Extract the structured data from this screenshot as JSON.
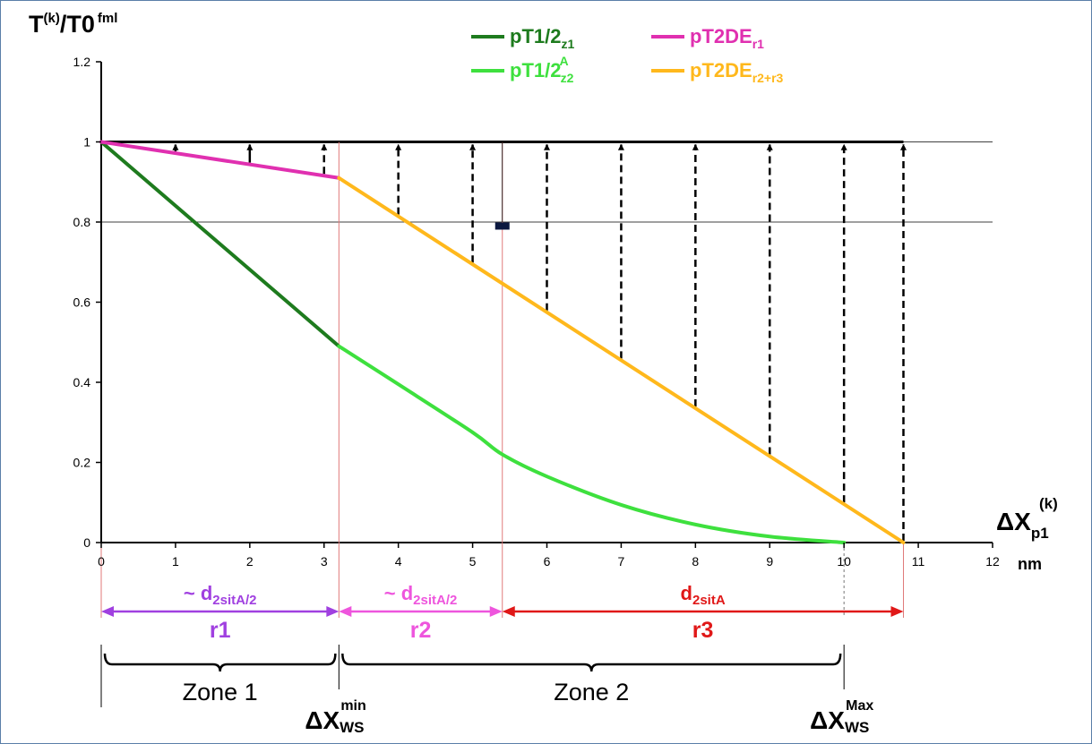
{
  "chart_data": {
    "type": "line",
    "ylabel": {
      "main": "T",
      "sup1": "(k)",
      "mid": "/T0",
      "sup2": "fml"
    },
    "xlabel": {
      "main": "ΔX",
      "sub": "p1",
      "sup": "(k)",
      "unit": "nm"
    },
    "xlim": [
      0,
      12
    ],
    "ylim": [
      0,
      1.2
    ],
    "x_ticks": [
      "0",
      "1",
      "2",
      "3",
      "4",
      "5",
      "6",
      "7",
      "8",
      "9",
      "10",
      "11",
      "12"
    ],
    "y_ticks": [
      "0",
      "0.2",
      "0.4",
      "0.6",
      "0.8",
      "1",
      "1.2"
    ],
    "grid": "horizontal lines at 0.8 and 1",
    "legend": [
      {
        "main": "pT1/2",
        "sub": "z1",
        "sup": "",
        "color": "#1e7b1e"
      },
      {
        "main": "pT2DE",
        "sub": "r1",
        "sup": "",
        "color": "#e030b0"
      },
      {
        "main": "pT1/2",
        "sub": "z2",
        "sup": "A",
        "color": "#3ee03e"
      },
      {
        "main": "pT2DE",
        "sub": "r2+r3",
        "sup": "",
        "color": "#ffb81c"
      }
    ],
    "series": [
      {
        "key": "z1",
        "color": "#1e7b1e",
        "points": [
          [
            0,
            1
          ],
          [
            3.2,
            0.49
          ]
        ]
      },
      {
        "key": "z2",
        "color": "#3ee03e",
        "points": [
          [
            3.2,
            0.49
          ],
          [
            4,
            0.395
          ],
          [
            5,
            0.275
          ],
          [
            5.4,
            0.22
          ],
          [
            6,
            0.165
          ],
          [
            7,
            0.094
          ],
          [
            8,
            0.045
          ],
          [
            9,
            0.015
          ],
          [
            10,
            0
          ]
        ]
      },
      {
        "key": "r1",
        "color": "#e030b0",
        "points": [
          [
            0,
            1
          ],
          [
            3.2,
            0.91
          ]
        ]
      },
      {
        "key": "r2r3",
        "color": "#ffb81c",
        "points": [
          [
            3.2,
            0.91
          ],
          [
            10.8,
            0
          ]
        ]
      }
    ],
    "arrows_x": [
      1,
      2,
      3,
      4,
      5,
      6,
      7,
      8,
      9,
      10,
      10.8
    ],
    "arrows_to_y": 1,
    "vertical_markers_x": [
      3.2,
      5.4
    ],
    "small_marker": {
      "x": 5.4,
      "y": 0.79
    },
    "regions": [
      {
        "label_main": "~ d",
        "label_sub": "2sitA/2",
        "name": "r1",
        "from": 0,
        "to": 3.2,
        "color": "#a040e0"
      },
      {
        "label_main": "~ d",
        "label_sub": "2sitA/2",
        "name": "r2",
        "from": 3.2,
        "to": 5.4,
        "color": "#ee55dd"
      },
      {
        "label_main": "d",
        "label_sub": "2sitA",
        "name": "r3",
        "from": 5.4,
        "to": 10.8,
        "color": "#e01818"
      }
    ],
    "zones": [
      {
        "label": "Zone 1",
        "from": 0,
        "to": 3.2
      },
      {
        "label": "Zone 2",
        "from": 3.2,
        "to": 10
      }
    ],
    "ws_labels": [
      {
        "main": "ΔX",
        "sub": "WS",
        "sup": "min",
        "x": 3.2
      },
      {
        "main": "ΔX",
        "sub": "WS",
        "sup": "Max",
        "x": 10
      }
    ]
  }
}
